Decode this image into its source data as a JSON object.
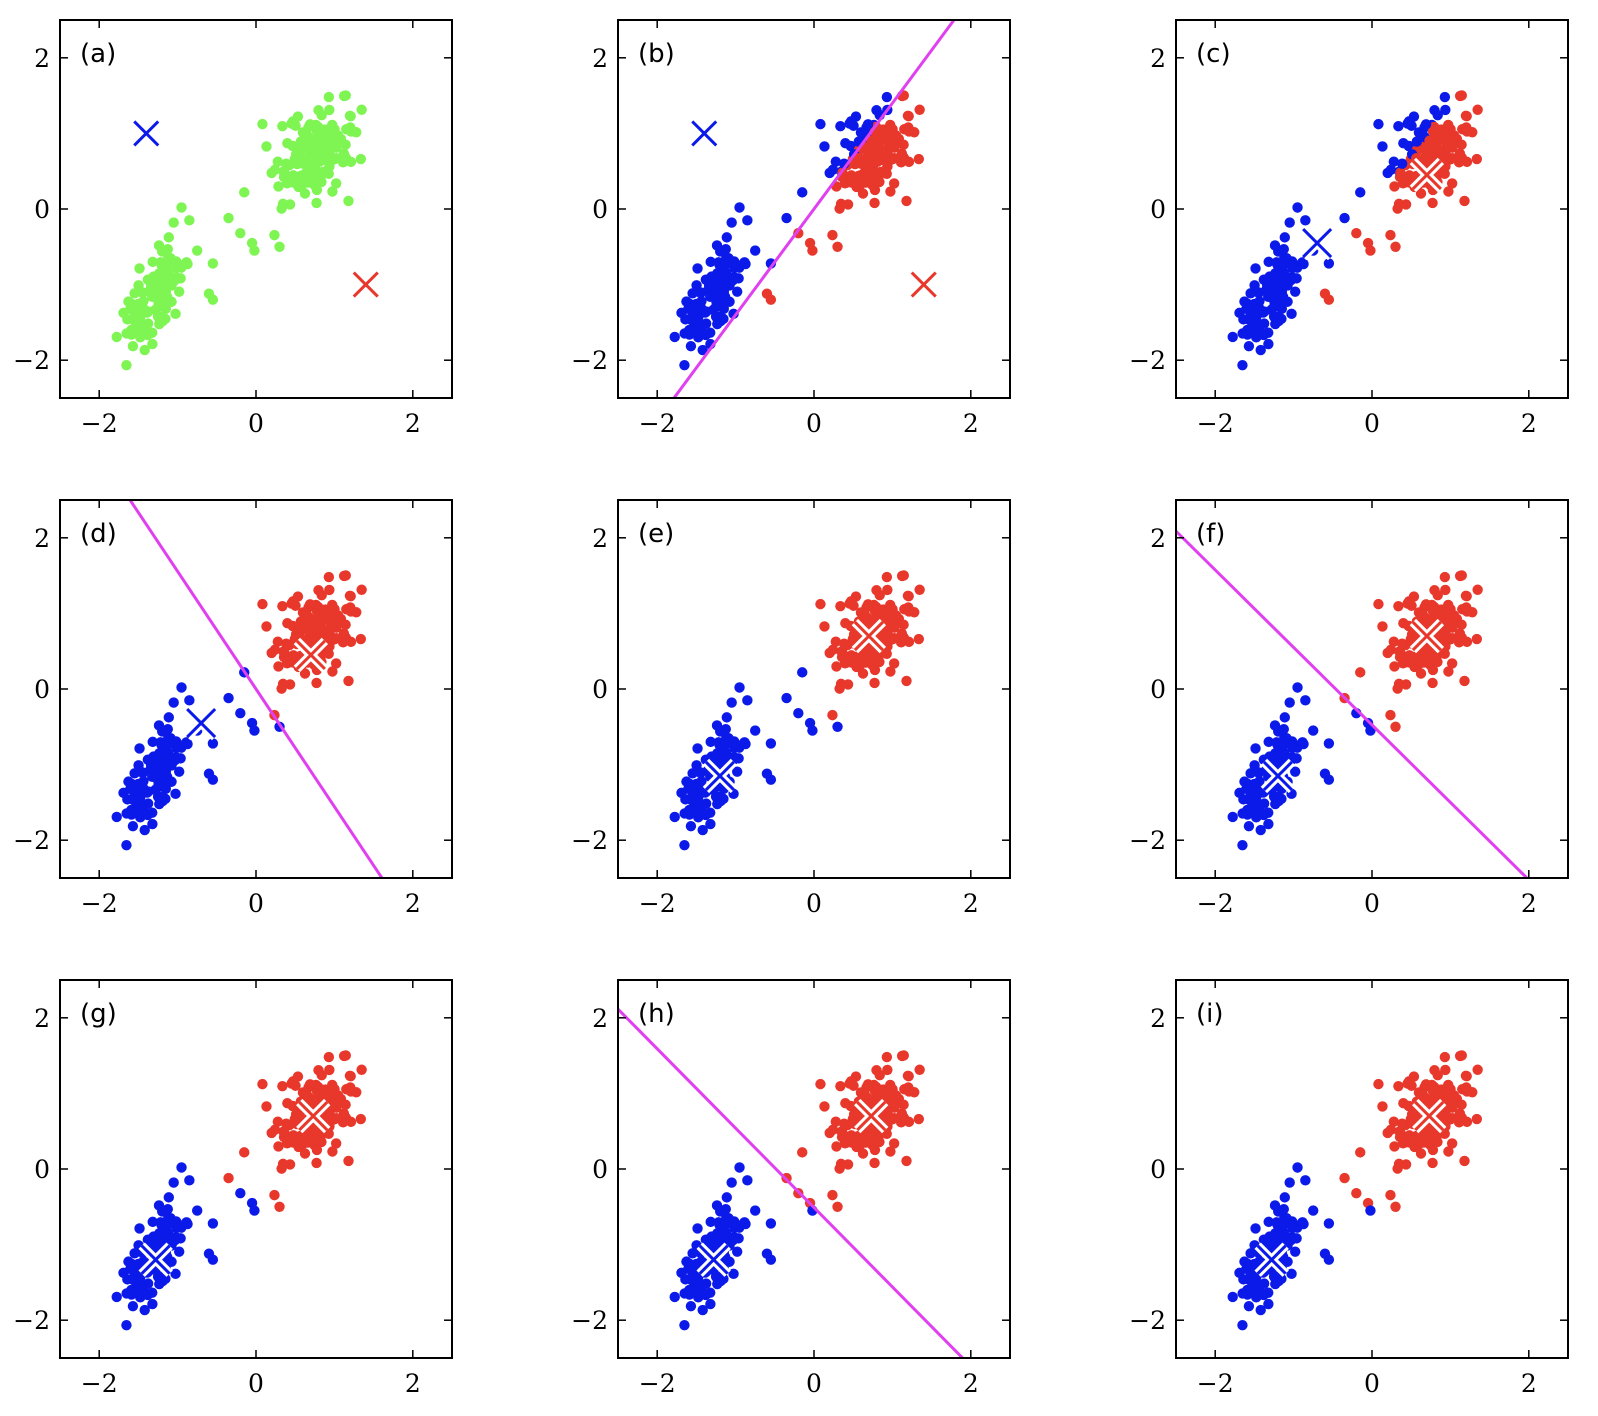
{
  "colors": {
    "unassigned": "#7ef552",
    "cluster1": "#0b1ae8",
    "cluster2": "#e8372b",
    "boundary": "#e040f0",
    "centroid_outline": "#ffffff"
  },
  "chart_data": {
    "type": "scatter",
    "title": "",
    "layout": "3x3 grid of panels",
    "xlim": [
      -2.5,
      2.5
    ],
    "ylim": [
      -2.5,
      2.5
    ],
    "xticks": [
      -2,
      0,
      2
    ],
    "yticks": [
      -2,
      0,
      2
    ],
    "xtick_labels": [
      "−2",
      "0",
      "2"
    ],
    "ytick_labels": [
      "−2",
      "0",
      "2"
    ],
    "grid": false,
    "legend": "none",
    "dataset_note": "same point cloud of two elongated clusters (lower-left near (-1.3,-1.2), upper-right near (0.7,0.7)) shown in every panel; colouring is k-means assignment",
    "panels": [
      {
        "label": "(a)",
        "point_coloring": "all unassigned",
        "centroids": [
          {
            "cluster": 1,
            "x": -1.4,
            "y": 1.0
          },
          {
            "cluster": 2,
            "x": 1.4,
            "y": -1.0
          }
        ],
        "boundary": null
      },
      {
        "label": "(b)",
        "point_coloring": "assigned to nearest initial centroid",
        "centroids": [
          {
            "cluster": 1,
            "x": -1.4,
            "y": 1.0
          },
          {
            "cluster": 2,
            "x": 1.4,
            "y": -1.0
          }
        ],
        "boundary": {
          "slope": 1.4,
          "intercept": 0.0
        }
      },
      {
        "label": "(c)",
        "point_coloring": "assigned (same as b)",
        "centroids": [
          {
            "cluster": 1,
            "x": -0.7,
            "y": -0.45
          },
          {
            "cluster": 2,
            "x": 0.7,
            "y": 0.45
          }
        ],
        "boundary": null
      },
      {
        "label": "(d)",
        "point_coloring": "reassigned to centroids of (c)",
        "centroids": [
          {
            "cluster": 1,
            "x": -0.7,
            "y": -0.45
          },
          {
            "cluster": 2,
            "x": 0.7,
            "y": 0.45
          }
        ],
        "boundary": {
          "slope": -1.556,
          "intercept": 0.0
        }
      },
      {
        "label": "(e)",
        "point_coloring": "assigned (same as d)",
        "centroids": [
          {
            "cluster": 1,
            "x": -1.2,
            "y": -1.15
          },
          {
            "cluster": 2,
            "x": 0.7,
            "y": 0.7
          }
        ],
        "boundary": null
      },
      {
        "label": "(f)",
        "point_coloring": "reassigned to centroids of (e)",
        "centroids": [
          {
            "cluster": 1,
            "x": -1.2,
            "y": -1.15
          },
          {
            "cluster": 2,
            "x": 0.7,
            "y": 0.7
          }
        ],
        "boundary": {
          "slope": -1.025,
          "intercept": -0.475
        }
      },
      {
        "label": "(g)",
        "point_coloring": "assigned (same as f)",
        "centroids": [
          {
            "cluster": 1,
            "x": -1.28,
            "y": -1.2
          },
          {
            "cluster": 2,
            "x": 0.73,
            "y": 0.7
          }
        ],
        "boundary": null
      },
      {
        "label": "(h)",
        "point_coloring": "reassigned to centroids of (g)",
        "centroids": [
          {
            "cluster": 1,
            "x": -1.28,
            "y": -1.2
          },
          {
            "cluster": 2,
            "x": 0.73,
            "y": 0.7
          }
        ],
        "boundary": {
          "slope": -1.05,
          "intercept": -0.51
        }
      },
      {
        "label": "(i)",
        "point_coloring": "assigned (converged)",
        "centroids": [
          {
            "cluster": 1,
            "x": -1.28,
            "y": -1.2
          },
          {
            "cluster": 2,
            "x": 0.73,
            "y": 0.7
          }
        ],
        "boundary": null
      }
    ]
  }
}
